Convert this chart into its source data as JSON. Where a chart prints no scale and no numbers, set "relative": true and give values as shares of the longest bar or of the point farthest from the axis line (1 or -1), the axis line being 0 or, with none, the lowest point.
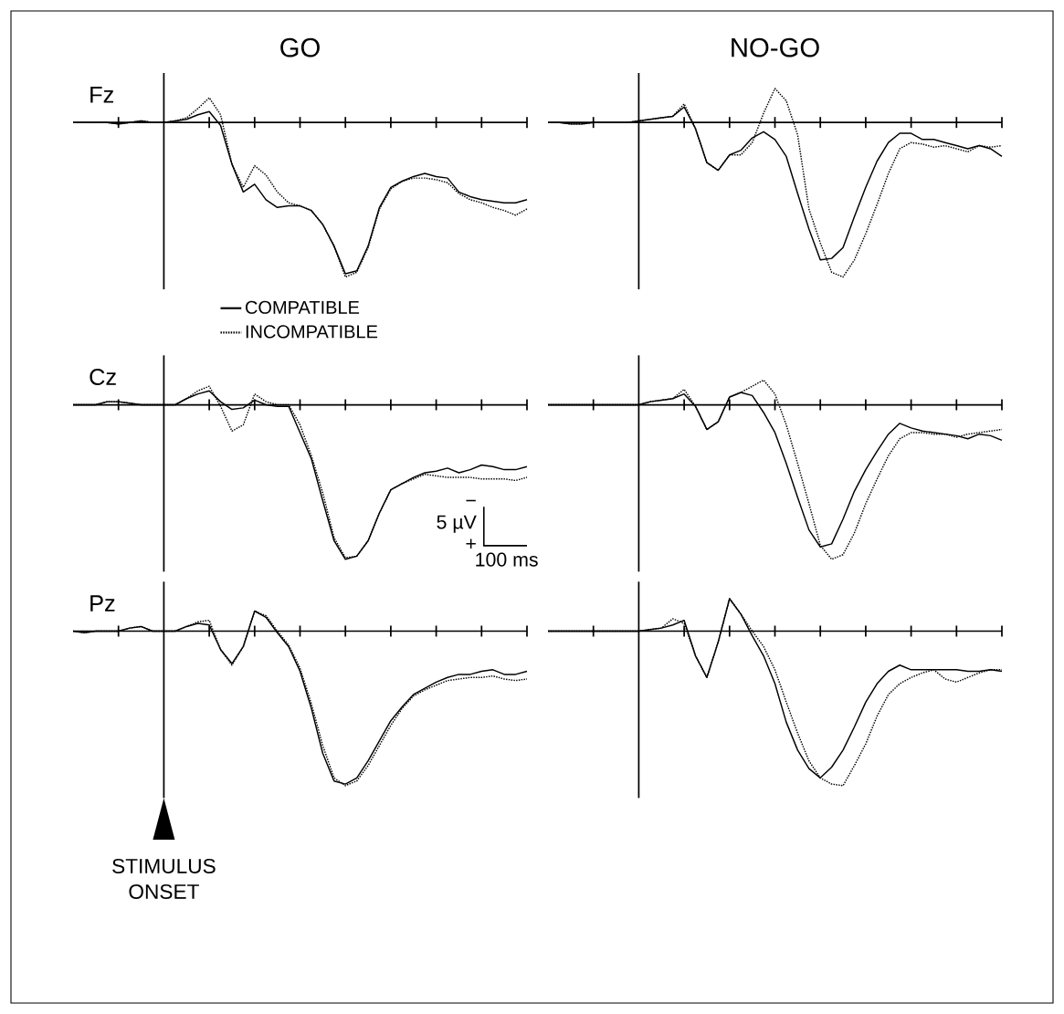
{
  "chart_data": [
    {
      "type": "line",
      "title": "GO",
      "ylabel": "Fz",
      "relative": true,
      "legend": "bottom",
      "categories": [
        null,
        null,
        null,
        null,
        null,
        null,
        null,
        null,
        null,
        null,
        null,
        null,
        null,
        null,
        null,
        null,
        null,
        null,
        null,
        null,
        null,
        null,
        null,
        null,
        null,
        null,
        null,
        null,
        null,
        null,
        null,
        null,
        null,
        null,
        null,
        null,
        null,
        null,
        null,
        null,
        null
      ],
      "series": [
        {
          "name": "COMPATIBLE",
          "color": "#000000",
          "line_style": "solid",
          "values": [
            0,
            0,
            0,
            0,
            -0.01,
            0,
            0.01,
            0,
            0,
            0.01,
            0.02,
            0.05,
            0.07,
            -0.02,
            -0.27,
            -0.45,
            -0.4,
            -0.5,
            -0.55,
            -0.54,
            -0.54,
            -0.57,
            -0.66,
            -0.8,
            -0.98,
            -0.96,
            -0.8,
            -0.55,
            -0.42,
            -0.38,
            -0.35,
            -0.33,
            -0.35,
            -0.36,
            -0.45,
            -0.48,
            -0.5,
            -0.51,
            -0.52,
            -0.52,
            -0.5
          ]
        },
        {
          "name": "INCOMPATIBLE",
          "color": "#000000",
          "line_style": "dotted",
          "values": [
            0,
            0,
            0,
            0,
            -0.01,
            0,
            0.01,
            0,
            0,
            0.01,
            0.03,
            0.09,
            0.16,
            0.05,
            -0.27,
            -0.42,
            -0.28,
            -0.34,
            -0.45,
            -0.52,
            -0.54,
            -0.57,
            -0.66,
            -0.8,
            -1.0,
            -0.97,
            -0.81,
            -0.56,
            -0.43,
            -0.38,
            -0.36,
            -0.36,
            -0.37,
            -0.39,
            -0.46,
            -0.5,
            -0.52,
            -0.55,
            -0.57,
            -0.6,
            -0.56
          ]
        }
      ]
    },
    {
      "type": "line",
      "title": "NO-GO",
      "relative": true,
      "categories": [
        null,
        null,
        null,
        null,
        null,
        null,
        null,
        null,
        null,
        null,
        null,
        null,
        null,
        null,
        null,
        null,
        null,
        null,
        null,
        null,
        null,
        null,
        null,
        null,
        null,
        null,
        null,
        null,
        null,
        null,
        null,
        null,
        null,
        null,
        null,
        null,
        null,
        null,
        null,
        null,
        null
      ],
      "series": [
        {
          "color": "#000000",
          "line_style": "solid",
          "values": [
            0,
            0,
            -0.01,
            -0.01,
            0,
            0,
            0,
            0,
            0.01,
            0.02,
            0.03,
            0.04,
            0.1,
            -0.04,
            -0.26,
            -0.31,
            -0.21,
            -0.18,
            -0.1,
            -0.06,
            -0.11,
            -0.22,
            -0.46,
            -0.69,
            -0.89,
            -0.88,
            -0.81,
            -0.61,
            -0.42,
            -0.25,
            -0.13,
            -0.07,
            -0.07,
            -0.11,
            -0.11,
            -0.13,
            -0.15,
            -0.17,
            -0.15,
            -0.17,
            -0.22
          ]
        },
        {
          "color": "#000000",
          "line_style": "dotted",
          "values": [
            0,
            0,
            -0.01,
            -0.01,
            0,
            0,
            0,
            0,
            0.01,
            0.02,
            0.03,
            0.04,
            0.12,
            -0.04,
            -0.26,
            -0.31,
            -0.21,
            -0.21,
            -0.13,
            0.06,
            0.22,
            0.14,
            -0.08,
            -0.56,
            -0.78,
            -0.97,
            -1.0,
            -0.89,
            -0.72,
            -0.53,
            -0.33,
            -0.17,
            -0.13,
            -0.14,
            -0.16,
            -0.15,
            -0.17,
            -0.19,
            -0.15,
            -0.16,
            -0.15
          ]
        }
      ]
    },
    {
      "type": "line",
      "ylabel": "Cz",
      "relative": true,
      "annotations": [
        "−",
        "5 µV",
        "+",
        "100 ms"
      ],
      "categories": [
        null,
        null,
        null,
        null,
        null,
        null,
        null,
        null,
        null,
        null,
        null,
        null,
        null,
        null,
        null,
        null,
        null,
        null,
        null,
        null,
        null,
        null,
        null,
        null,
        null,
        null,
        null,
        null,
        null,
        null,
        null,
        null,
        null,
        null,
        null,
        null,
        null,
        null,
        null,
        null,
        null
      ],
      "series": [
        {
          "color": "#000000",
          "line_style": "solid",
          "values": [
            0,
            0,
            0,
            0.02,
            0.02,
            0.01,
            0,
            0,
            0,
            0,
            0.04,
            0.07,
            0.09,
            0.02,
            -0.03,
            -0.02,
            0.03,
            0,
            -0.01,
            -0.01,
            -0.18,
            -0.35,
            -0.62,
            -0.88,
            -1.0,
            -0.98,
            -0.88,
            -0.7,
            -0.55,
            -0.51,
            -0.47,
            -0.44,
            -0.43,
            -0.41,
            -0.44,
            -0.42,
            -0.39,
            -0.4,
            -0.42,
            -0.42,
            -0.4
          ]
        },
        {
          "color": "#000000",
          "line_style": "dotted",
          "values": [
            0,
            0,
            0,
            0.02,
            0.02,
            0.01,
            0,
            0,
            0,
            0,
            0.04,
            0.09,
            0.12,
            -0.01,
            -0.17,
            -0.13,
            0.07,
            0.02,
            0,
            0,
            -0.13,
            -0.33,
            -0.57,
            -0.86,
            -0.99,
            -0.98,
            -0.88,
            -0.7,
            -0.55,
            -0.51,
            -0.48,
            -0.45,
            -0.46,
            -0.47,
            -0.47,
            -0.47,
            -0.48,
            -0.48,
            -0.48,
            -0.49,
            -0.47
          ]
        }
      ]
    },
    {
      "type": "line",
      "relative": true,
      "categories": [
        null,
        null,
        null,
        null,
        null,
        null,
        null,
        null,
        null,
        null,
        null,
        null,
        null,
        null,
        null,
        null,
        null,
        null,
        null,
        null,
        null,
        null,
        null,
        null,
        null,
        null,
        null,
        null,
        null,
        null,
        null,
        null,
        null,
        null,
        null,
        null,
        null,
        null,
        null,
        null,
        null
      ],
      "series": [
        {
          "color": "#000000",
          "line_style": "solid",
          "values": [
            0,
            0,
            0,
            0,
            0,
            0,
            0,
            0,
            0,
            0.02,
            0.03,
            0.04,
            0.07,
            -0.01,
            -0.16,
            -0.11,
            0.05,
            0.08,
            0.06,
            -0.05,
            -0.18,
            -0.38,
            -0.6,
            -0.81,
            -0.92,
            -0.9,
            -0.74,
            -0.56,
            -0.42,
            -0.3,
            -0.19,
            -0.12,
            -0.15,
            -0.17,
            -0.18,
            -0.19,
            -0.2,
            -0.22,
            -0.19,
            -0.2,
            -0.23
          ]
        },
        {
          "color": "#000000",
          "line_style": "dotted",
          "values": [
            0,
            0,
            0,
            0,
            0,
            0,
            0,
            0,
            0,
            0.02,
            0.03,
            0.04,
            0.1,
            -0.01,
            -0.16,
            -0.11,
            0.05,
            0.08,
            0.12,
            0.16,
            0.07,
            -0.13,
            -0.38,
            -0.64,
            -0.91,
            -1.0,
            -0.97,
            -0.83,
            -0.64,
            -0.48,
            -0.33,
            -0.22,
            -0.18,
            -0.18,
            -0.19,
            -0.19,
            -0.21,
            -0.19,
            -0.18,
            -0.17,
            -0.16
          ]
        }
      ]
    },
    {
      "type": "line",
      "ylabel": "Pz",
      "relative": true,
      "annotations": [
        "STIMULUS ONSET"
      ],
      "categories": [
        null,
        null,
        null,
        null,
        null,
        null,
        null,
        null,
        null,
        null,
        null,
        null,
        null,
        null,
        null,
        null,
        null,
        null,
        null,
        null,
        null,
        null,
        null,
        null,
        null,
        null,
        null,
        null,
        null,
        null,
        null,
        null,
        null,
        null,
        null,
        null,
        null,
        null,
        null,
        null,
        null
      ],
      "series": [
        {
          "color": "#000000",
          "line_style": "solid",
          "values": [
            0,
            -0.01,
            0,
            0,
            0,
            0.02,
            0.03,
            0,
            0,
            0,
            0.03,
            0.05,
            0.04,
            -0.12,
            -0.21,
            -0.1,
            0.13,
            0.09,
            -0.01,
            -0.1,
            -0.26,
            -0.5,
            -0.79,
            -0.97,
            -0.99,
            -0.95,
            -0.84,
            -0.71,
            -0.58,
            -0.49,
            -0.41,
            -0.37,
            -0.33,
            -0.3,
            -0.28,
            -0.28,
            -0.26,
            -0.25,
            -0.28,
            -0.28,
            -0.26
          ]
        },
        {
          "color": "#000000",
          "line_style": "dotted",
          "values": [
            0,
            -0.01,
            0,
            0,
            0,
            0.02,
            0.03,
            0,
            0,
            0,
            0.03,
            0.06,
            0.07,
            -0.12,
            -0.22,
            -0.1,
            0.13,
            0.1,
            0,
            -0.09,
            -0.24,
            -0.47,
            -0.74,
            -0.95,
            -1.0,
            -0.97,
            -0.87,
            -0.74,
            -0.61,
            -0.5,
            -0.42,
            -0.38,
            -0.35,
            -0.32,
            -0.31,
            -0.3,
            -0.3,
            -0.29,
            -0.31,
            -0.32,
            -0.31
          ]
        }
      ]
    },
    {
      "type": "line",
      "relative": true,
      "categories": [
        null,
        null,
        null,
        null,
        null,
        null,
        null,
        null,
        null,
        null,
        null,
        null,
        null,
        null,
        null,
        null,
        null,
        null,
        null,
        null,
        null,
        null,
        null,
        null,
        null,
        null,
        null,
        null,
        null,
        null,
        null,
        null,
        null,
        null,
        null,
        null,
        null,
        null,
        null,
        null,
        null
      ],
      "series": [
        {
          "color": "#000000",
          "line_style": "solid",
          "values": [
            0,
            0,
            0,
            0,
            0,
            0,
            0,
            0,
            0,
            0.01,
            0.02,
            0.04,
            0.07,
            -0.16,
            -0.3,
            -0.07,
            0.21,
            0.11,
            -0.03,
            -0.16,
            -0.34,
            -0.59,
            -0.77,
            -0.89,
            -0.95,
            -0.88,
            -0.77,
            -0.62,
            -0.46,
            -0.34,
            -0.26,
            -0.22,
            -0.25,
            -0.25,
            -0.25,
            -0.25,
            -0.25,
            -0.26,
            -0.26,
            -0.25,
            -0.26
          ]
        },
        {
          "color": "#000000",
          "line_style": "dotted",
          "values": [
            0,
            0,
            0,
            0,
            0,
            0,
            0,
            0,
            0,
            0.01,
            0.02,
            0.08,
            0.05,
            -0.16,
            -0.3,
            -0.07,
            0.21,
            0.11,
            0,
            -0.1,
            -0.25,
            -0.46,
            -0.66,
            -0.84,
            -0.95,
            -0.99,
            -1.0,
            -0.87,
            -0.73,
            -0.55,
            -0.41,
            -0.34,
            -0.3,
            -0.27,
            -0.25,
            -0.31,
            -0.33,
            -0.3,
            -0.27,
            -0.25,
            -0.25
          ]
        }
      ]
    }
  ]
}
